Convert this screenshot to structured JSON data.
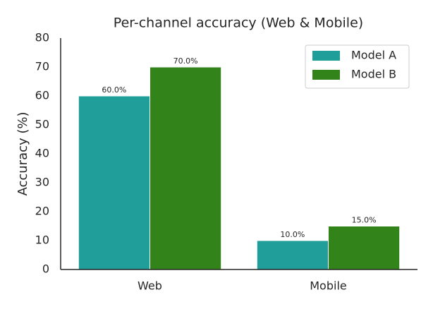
{
  "chart_data": {
    "type": "bar",
    "title": "Per-channel accuracy (Web & Mobile)",
    "y_label": "Accuracy (%)",
    "categories": [
      "Web",
      "Mobile"
    ],
    "series": [
      {
        "name": "Model A",
        "color": "#1f9e9a",
        "values": [
          60,
          10
        ],
        "value_labels": [
          "60.0%",
          "10.0%"
        ]
      },
      {
        "name": "Model B",
        "color": "#32841a",
        "values": [
          70,
          15
        ],
        "value_labels": [
          "70.0%",
          "15.0%"
        ]
      }
    ],
    "ylim": [
      0,
      80
    ],
    "yticks": [
      0,
      10,
      20,
      30,
      40,
      50,
      60,
      70,
      80
    ],
    "grid": false,
    "legend": "upper right"
  }
}
